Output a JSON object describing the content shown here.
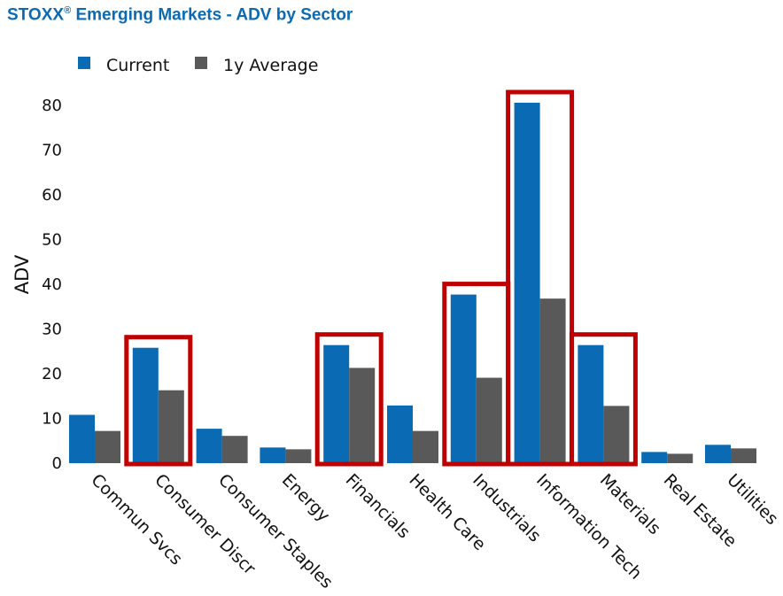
{
  "chart_data": {
    "type": "bar",
    "title": "STOXX",
    "title_reg": "®",
    "title_rest": " Emerging Markets - ADV by Sector",
    "xlabel": "",
    "ylabel": "ADV",
    "ylim": [
      0,
      85
    ],
    "yticks": [
      0,
      10,
      20,
      30,
      40,
      50,
      60,
      70,
      80
    ],
    "legend_position": "top-left",
    "grid": false,
    "categories": [
      "Commun Svcs",
      "Consumer Discr",
      "Consumer Staples",
      "Energy",
      "Financials",
      "Health Care",
      "Industrials",
      "Information Tech",
      "Materials",
      "Real Estate",
      "Utilities"
    ],
    "series": [
      {
        "name": "Current",
        "color": "#0a6ab3",
        "values": [
          10.8,
          25.8,
          7.7,
          3.5,
          26.4,
          12.9,
          37.7,
          80.6,
          26.4,
          2.5,
          4.1
        ]
      },
      {
        "name": "1y Average",
        "color": "#595959",
        "values": [
          7.2,
          16.3,
          6.1,
          3.1,
          21.3,
          7.2,
          19.1,
          36.8,
          12.8,
          2.1,
          3.3
        ]
      }
    ],
    "highlighted_categories": [
      "Consumer Discr",
      "Financials",
      "Industrials",
      "Information Tech",
      "Materials"
    ],
    "highlight_color": "#c00000"
  }
}
